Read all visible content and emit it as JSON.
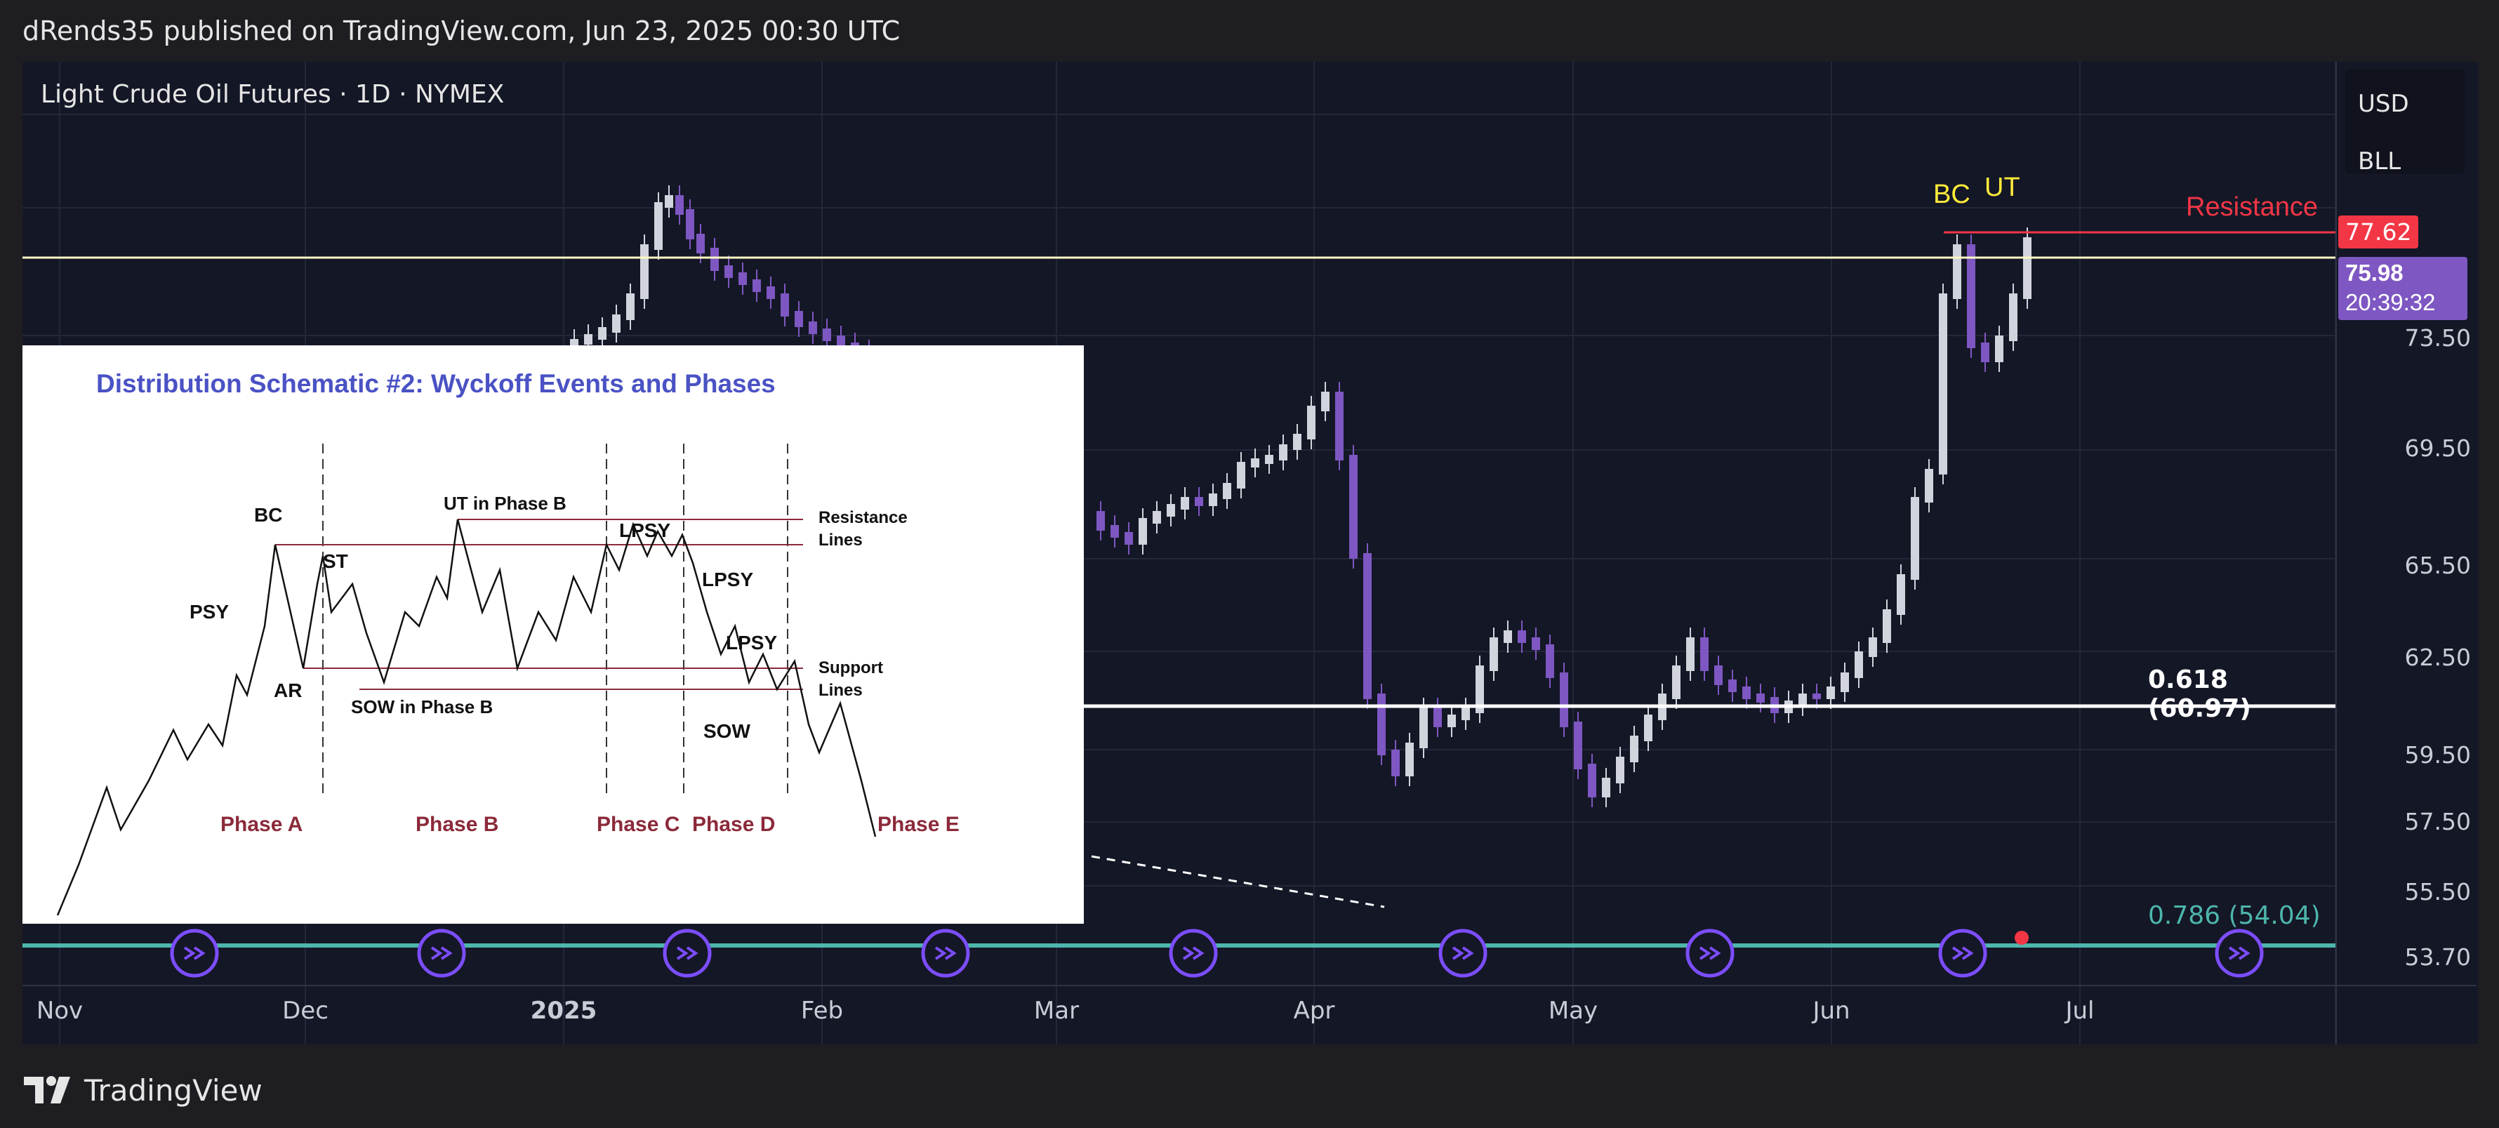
{
  "header": {
    "publish_text": "dRends35 published on TradingView.com, Jun 23, 2025 00:30 UTC"
  },
  "symbol": {
    "title": "Light Crude Oil Futures · 1D · NYMEX"
  },
  "units": {
    "currency": "USD",
    "unit": "BLL"
  },
  "price_axis": [
    "73.50",
    "69.50",
    "65.50",
    "62.50",
    "59.50",
    "57.50",
    "55.50",
    "53.70"
  ],
  "price_tags": {
    "resistance_price": "77.62",
    "last_price": "75.98",
    "countdown": "20:39:32"
  },
  "time_axis": [
    "Nov",
    "Dec",
    "2025",
    "Feb",
    "Mar",
    "Apr",
    "May",
    "Jun",
    "Jul"
  ],
  "annotations": {
    "bc": "BC",
    "ut": "UT",
    "resistance": "Resistance",
    "fib_618": "0.618 (60.97)",
    "fib_786": "0.786 (54.04)"
  },
  "colors": {
    "background": "#141726",
    "candle_up": "#d1d4dc",
    "candle_down": "#7e57c2",
    "resistance": "#f23645",
    "fib_618": "#ffffff",
    "fib_786": "#4db6ac",
    "horizontal_line": "#fff9c4"
  },
  "inset": {
    "title": "Distribution Schematic #2: Wyckoff Events and Phases",
    "labels": {
      "bc": "BC",
      "psy": "PSY",
      "ar": "AR",
      "st": "ST",
      "ut_b": "UT in Phase B",
      "sow_b": "SOW in Phase B",
      "lpsy1": "LPSY",
      "lpsy2": "LPSY",
      "lpsy3": "LPSY",
      "sow": "SOW",
      "resistance": "Resistance",
      "resistance2": "Lines",
      "support": "Support",
      "support2": "Lines"
    },
    "phases": [
      "Phase A",
      "Phase B",
      "Phase C",
      "Phase D",
      "Phase E"
    ]
  },
  "footer": {
    "brand": "TradingView"
  }
}
